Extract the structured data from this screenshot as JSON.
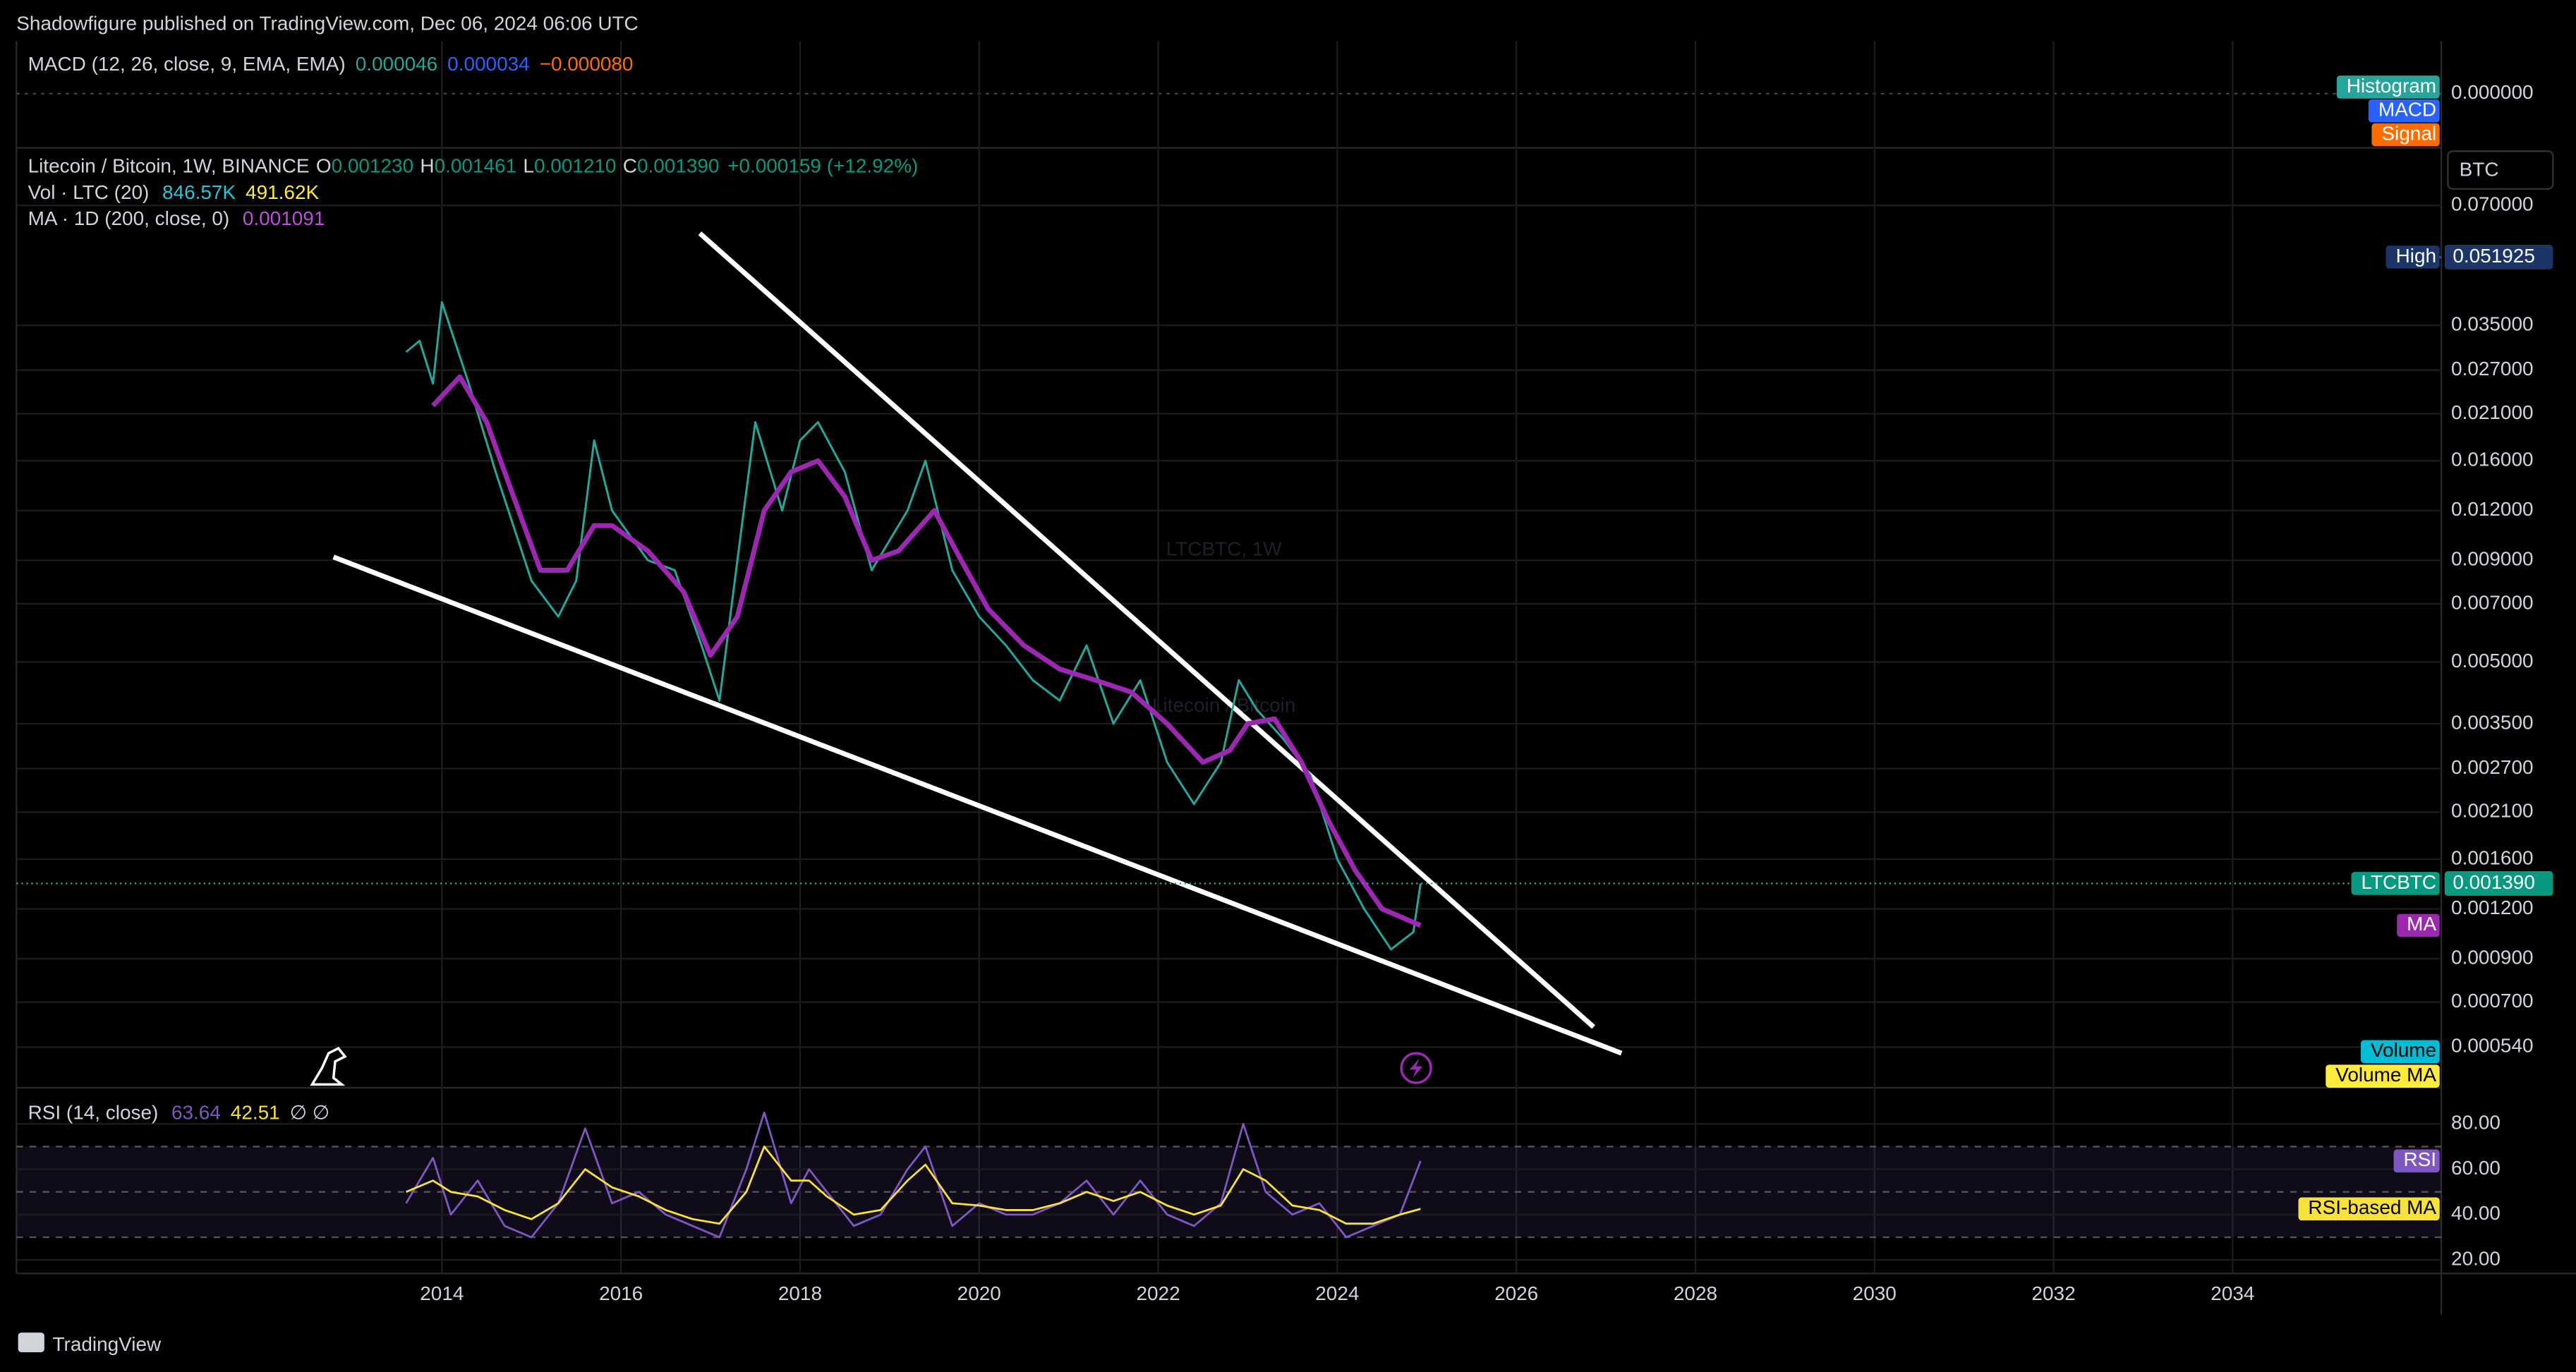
{
  "header": {
    "publisher": "Shadowfigure published on TradingView.com, Dec 06, 2024 06:06 UTC"
  },
  "macd_pane": {
    "title": "MACD (12, 26, close, 9, EMA, EMA)",
    "values": [
      "0.000046",
      "0.000034",
      "−0.000080"
    ],
    "zero_label": "0.000000",
    "tags": [
      "Histogram",
      "MACD",
      "Signal"
    ]
  },
  "price_pane": {
    "symbol": "Litecoin / Bitcoin, 1W, BINANCE",
    "ohlc": [
      {
        "label": "O",
        "value": "0.001230"
      },
      {
        "label": "H",
        "value": "0.001461"
      },
      {
        "label": "L",
        "value": "0.001210"
      },
      {
        "label": "C",
        "value": "0.001390"
      }
    ],
    "change": "+0.000159 (+12.92%)",
    "volume_legend": {
      "title": "Vol · LTC (20)",
      "values": [
        "846.57K",
        "491.62K"
      ]
    },
    "ma_legend": {
      "title": "MA · 1D (200, close, 0)",
      "value": "0.001091"
    },
    "watermark": {
      "symbol": "LTCBTC, 1W",
      "description": "Litecoin / Bitcoin"
    },
    "currency": "BTC",
    "log_scale": true,
    "yticks": [
      {
        "value": 0.07,
        "label": "0.070000"
      },
      {
        "value": 0.035,
        "label": "0.035000"
      },
      {
        "value": 0.027,
        "label": "0.027000"
      },
      {
        "value": 0.021,
        "label": "0.021000"
      },
      {
        "value": 0.016,
        "label": "0.016000"
      },
      {
        "value": 0.012,
        "label": "0.012000"
      },
      {
        "value": 0.009,
        "label": "0.009000"
      },
      {
        "value": 0.007,
        "label": "0.007000"
      },
      {
        "value": 0.005,
        "label": "0.005000"
      },
      {
        "value": 0.0035,
        "label": "0.003500"
      },
      {
        "value": 0.0027,
        "label": "0.002700"
      },
      {
        "value": 0.0021,
        "label": "0.002100"
      },
      {
        "value": 0.0016,
        "label": "0.001600"
      },
      {
        "value": 0.0012,
        "label": "0.001200"
      },
      {
        "value": 0.0009,
        "label": "0.000900"
      },
      {
        "value": 0.0007,
        "label": "0.000700"
      },
      {
        "value": 0.00054,
        "label": "0.000540"
      }
    ],
    "high": {
      "name": "High",
      "value": 0.051925,
      "label": "0.051925"
    },
    "last_price": {
      "value": 0.00139,
      "label": "0.001390"
    },
    "series": [
      {
        "name": "LTCBTC",
        "color": "#26a69a",
        "x": [
          2013.6,
          2013.75,
          2013.9,
          2014.0,
          2014.3,
          2014.6,
          2015.0,
          2015.3,
          2015.5,
          2015.7,
          2015.9,
          2016.3,
          2016.6,
          2016.9,
          2017.1,
          2017.3,
          2017.5,
          2017.8,
          2018.0,
          2018.2,
          2018.5,
          2018.8,
          2019.2,
          2019.4,
          2019.7,
          2020.0,
          2020.3,
          2020.6,
          2020.9,
          2021.2,
          2021.5,
          2021.8,
          2022.1,
          2022.4,
          2022.7,
          2022.9,
          2023.1,
          2023.4,
          2023.7,
          2024.0,
          2024.3,
          2024.6,
          2024.85,
          2024.93
        ],
        "values": [
          0.03,
          0.032,
          0.025,
          0.04,
          0.025,
          0.015,
          0.008,
          0.0065,
          0.008,
          0.018,
          0.012,
          0.009,
          0.0085,
          0.0055,
          0.004,
          0.009,
          0.02,
          0.012,
          0.018,
          0.02,
          0.015,
          0.0085,
          0.012,
          0.016,
          0.0085,
          0.0065,
          0.0055,
          0.0045,
          0.004,
          0.0055,
          0.0035,
          0.0045,
          0.0028,
          0.0022,
          0.0028,
          0.0045,
          0.0038,
          0.0032,
          0.0026,
          0.0016,
          0.0012,
          0.00095,
          0.00105,
          0.00139
        ]
      },
      {
        "name": "MA",
        "color": "#9c27b0",
        "x": [
          2013.9,
          2014.2,
          2014.5,
          2014.8,
          2015.1,
          2015.4,
          2015.7,
          2015.9,
          2016.3,
          2016.7,
          2017.0,
          2017.3,
          2017.6,
          2017.9,
          2018.2,
          2018.5,
          2018.8,
          2019.1,
          2019.5,
          2019.8,
          2020.1,
          2020.5,
          2020.9,
          2021.3,
          2021.7,
          2022.1,
          2022.5,
          2022.8,
          2023.0,
          2023.3,
          2023.6,
          2023.9,
          2024.2,
          2024.5,
          2024.93
        ],
        "values": [
          0.022,
          0.026,
          0.02,
          0.013,
          0.0085,
          0.0085,
          0.011,
          0.011,
          0.0095,
          0.0075,
          0.0052,
          0.0065,
          0.012,
          0.015,
          0.016,
          0.013,
          0.009,
          0.0095,
          0.012,
          0.009,
          0.0068,
          0.0055,
          0.0048,
          0.0045,
          0.0042,
          0.0035,
          0.0028,
          0.003,
          0.0035,
          0.0036,
          0.0028,
          0.002,
          0.0015,
          0.0012,
          0.001091
        ]
      }
    ],
    "volume_tags": [
      "Volume",
      "Volume MA"
    ]
  },
  "rsi_pane": {
    "title": "RSI (14, close)",
    "values": [
      "63.64",
      "42.51"
    ],
    "extras": "∅ ∅",
    "yticks": [
      {
        "value": 80,
        "label": "80.00"
      },
      {
        "value": 60,
        "label": "60.00"
      },
      {
        "value": 40,
        "label": "40.00"
      },
      {
        "value": 20,
        "label": "20.00"
      }
    ],
    "band_levels": [
      70,
      50,
      30
    ],
    "series": [
      {
        "name": "RSI",
        "color": "#7e57c2",
        "x": [
          2013.6,
          2013.9,
          2014.1,
          2014.4,
          2014.7,
          2015.0,
          2015.3,
          2015.6,
          2015.9,
          2016.2,
          2016.5,
          2016.8,
          2017.1,
          2017.4,
          2017.6,
          2017.9,
          2018.1,
          2018.3,
          2018.6,
          2018.9,
          2019.2,
          2019.4,
          2019.7,
          2020.0,
          2020.3,
          2020.6,
          2020.9,
          2021.2,
          2021.5,
          2021.8,
          2022.1,
          2022.4,
          2022.7,
          2022.95,
          2023.2,
          2023.5,
          2023.8,
          2024.1,
          2024.4,
          2024.7,
          2024.93
        ],
        "values": [
          45,
          65,
          40,
          55,
          35,
          30,
          45,
          78,
          45,
          50,
          40,
          35,
          30,
          60,
          85,
          45,
          60,
          50,
          35,
          40,
          60,
          70,
          35,
          45,
          40,
          40,
          45,
          55,
          40,
          55,
          40,
          35,
          45,
          80,
          50,
          40,
          45,
          30,
          35,
          40,
          63.64
        ]
      },
      {
        "name": "RSI-based MA",
        "color": "#f7e13b",
        "x": [
          2013.6,
          2013.9,
          2014.1,
          2014.4,
          2014.7,
          2015.0,
          2015.3,
          2015.6,
          2015.9,
          2016.2,
          2016.5,
          2016.8,
          2017.1,
          2017.4,
          2017.6,
          2017.9,
          2018.1,
          2018.3,
          2018.6,
          2018.9,
          2019.2,
          2019.4,
          2019.7,
          2020.0,
          2020.3,
          2020.6,
          2020.9,
          2021.2,
          2021.5,
          2021.8,
          2022.1,
          2022.4,
          2022.7,
          2022.95,
          2023.2,
          2023.5,
          2023.8,
          2024.1,
          2024.4,
          2024.7,
          2024.93
        ],
        "values": [
          50,
          55,
          50,
          48,
          42,
          38,
          45,
          60,
          52,
          48,
          42,
          38,
          36,
          50,
          70,
          55,
          55,
          48,
          40,
          42,
          55,
          62,
          45,
          44,
          42,
          42,
          45,
          50,
          46,
          50,
          44,
          40,
          44,
          60,
          55,
          44,
          42,
          36,
          36,
          40,
          42.51
        ]
      }
    ]
  },
  "time_axis": {
    "ticks": [
      2014,
      2016,
      2018,
      2020,
      2022,
      2024,
      2026,
      2028,
      2030,
      2032,
      2034
    ]
  },
  "footer": {
    "brand": "TradingView"
  }
}
